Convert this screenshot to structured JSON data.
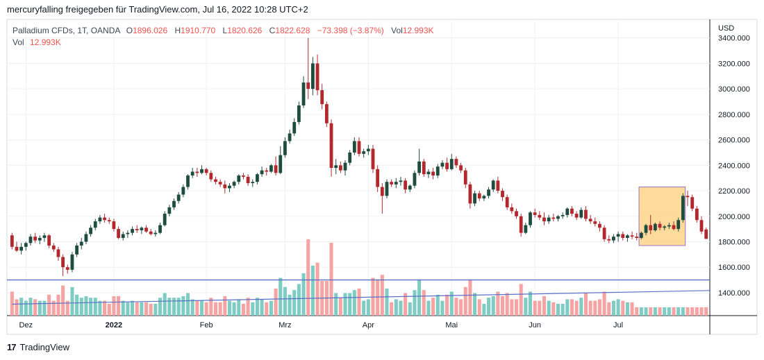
{
  "header": {
    "snapshot_text": "mercuryfalling freigegeben für TradingView.com, Jul 16, 2022 10:28 UTC+2"
  },
  "legend": {
    "symbol": "Palladium CFDs, 1T, OANDA",
    "o_label": "O",
    "o_value": "1896.026",
    "h_label": "H",
    "h_value": "1910.770",
    "l_label": "L",
    "l_value": "1820.626",
    "c_label": "C",
    "c_value": "1822.628",
    "change": "−73.398 (−3.87%)",
    "vol_label": "Vol",
    "vol_value": "12.993K",
    "vol2_label": "Vol",
    "vol2_value": "12.993K"
  },
  "footer": {
    "logo_mark": "17",
    "brand": "TradingView"
  },
  "colors": {
    "up": "#26a69a",
    "down": "#ef5350",
    "up_body": "#1e4d3f",
    "down_body": "#b2282c",
    "vol_up": "#7fccc4",
    "vol_down": "#f5a3a3",
    "hline": "#5b6fc7",
    "highlight": "#fcd58a"
  },
  "chart_data": {
    "type": "candlestick",
    "currency": "USD",
    "ylim": [
      1220,
      3480
    ],
    "y_ticks": [
      "3400.000",
      "3200.000",
      "3000.000",
      "2800.000",
      "2600.000",
      "2400.000",
      "2200.000",
      "2000.000",
      "1800.000",
      "1600.000",
      "1400.000"
    ],
    "y_tick_values": [
      3400,
      3200,
      3000,
      2800,
      2600,
      2400,
      2200,
      2000,
      1800,
      1600,
      1400
    ],
    "x_ticks": [
      "Dez",
      "2022",
      "Feb",
      "Mrz",
      "Apr",
      "Mai",
      "Jun",
      "Jul"
    ],
    "x_tick_index": [
      3,
      22,
      42,
      59,
      77,
      95,
      113,
      131
    ],
    "horizontal_line": 1500,
    "trend_line": [
      [
        0,
        1310
      ],
      [
        146,
        1417
      ]
    ],
    "highlight_box": {
      "from_index": 136,
      "to_index": 145,
      "low": 1770,
      "high": 2230
    },
    "ohlc": [
      [
        1850,
        1870,
        1740,
        1760
      ],
      [
        1760,
        1800,
        1720,
        1730
      ],
      [
        1730,
        1790,
        1700,
        1760
      ],
      [
        1760,
        1800,
        1730,
        1790
      ],
      [
        1790,
        1860,
        1770,
        1840
      ],
      [
        1840,
        1870,
        1790,
        1810
      ],
      [
        1810,
        1850,
        1780,
        1830
      ],
      [
        1830,
        1870,
        1800,
        1850
      ],
      [
        1850,
        1860,
        1750,
        1770
      ],
      [
        1770,
        1790,
        1720,
        1740
      ],
      [
        1740,
        1760,
        1650,
        1680
      ],
      [
        1680,
        1700,
        1530,
        1600
      ],
      [
        1600,
        1620,
        1550,
        1580
      ],
      [
        1580,
        1720,
        1560,
        1700
      ],
      [
        1700,
        1790,
        1680,
        1770
      ],
      [
        1770,
        1830,
        1740,
        1800
      ],
      [
        1800,
        1880,
        1780,
        1860
      ],
      [
        1860,
        1930,
        1840,
        1910
      ],
      [
        1910,
        1980,
        1890,
        1960
      ],
      [
        1960,
        2010,
        1940,
        1990
      ],
      [
        1990,
        2020,
        1950,
        1970
      ],
      [
        1970,
        1990,
        1940,
        1960
      ],
      [
        1960,
        1980,
        1880,
        1900
      ],
      [
        1900,
        1920,
        1820,
        1830
      ],
      [
        1830,
        1880,
        1810,
        1860
      ],
      [
        1860,
        1890,
        1830,
        1870
      ],
      [
        1870,
        1920,
        1850,
        1900
      ],
      [
        1900,
        1930,
        1870,
        1890
      ],
      [
        1890,
        1920,
        1860,
        1910
      ],
      [
        1910,
        1930,
        1870,
        1880
      ],
      [
        1880,
        1900,
        1850,
        1860
      ],
      [
        1860,
        1890,
        1840,
        1870
      ],
      [
        1870,
        1950,
        1860,
        1930
      ],
      [
        1930,
        2040,
        1920,
        2020
      ],
      [
        2020,
        2090,
        2000,
        2070
      ],
      [
        2070,
        2140,
        2050,
        2120
      ],
      [
        2120,
        2190,
        2100,
        2170
      ],
      [
        2170,
        2250,
        2150,
        2230
      ],
      [
        2230,
        2330,
        2210,
        2320
      ],
      [
        2320,
        2380,
        2300,
        2350
      ],
      [
        2350,
        2380,
        2310,
        2340
      ],
      [
        2340,
        2400,
        2330,
        2370
      ],
      [
        2370,
        2380,
        2320,
        2340
      ],
      [
        2340,
        2360,
        2270,
        2290
      ],
      [
        2290,
        2310,
        2250,
        2270
      ],
      [
        2270,
        2290,
        2230,
        2250
      ],
      [
        2250,
        2280,
        2180,
        2220
      ],
      [
        2220,
        2260,
        2190,
        2240
      ],
      [
        2240,
        2280,
        2220,
        2270
      ],
      [
        2270,
        2330,
        2250,
        2320
      ],
      [
        2320,
        2340,
        2290,
        2310
      ],
      [
        2310,
        2330,
        2240,
        2260
      ],
      [
        2260,
        2290,
        2230,
        2270
      ],
      [
        2270,
        2340,
        2250,
        2330
      ],
      [
        2330,
        2390,
        2310,
        2360
      ],
      [
        2360,
        2380,
        2320,
        2350
      ],
      [
        2350,
        2410,
        2340,
        2400
      ],
      [
        2400,
        2470,
        2320,
        2340
      ],
      [
        2340,
        2550,
        2330,
        2480
      ],
      [
        2480,
        2620,
        2460,
        2590
      ],
      [
        2590,
        2680,
        2570,
        2650
      ],
      [
        2650,
        2770,
        2630,
        2740
      ],
      [
        2740,
        2900,
        2720,
        2870
      ],
      [
        2870,
        3100,
        2850,
        3050
      ],
      [
        3050,
        3400,
        2920,
        3000
      ],
      [
        3000,
        3250,
        2950,
        3200
      ],
      [
        3200,
        3270,
        2950,
        2990
      ],
      [
        2990,
        3040,
        2840,
        2880
      ],
      [
        2880,
        2900,
        2700,
        2730
      ],
      [
        2730,
        2760,
        2310,
        2380
      ],
      [
        2380,
        2450,
        2330,
        2400
      ],
      [
        2400,
        2430,
        2340,
        2360
      ],
      [
        2360,
        2440,
        2320,
        2420
      ],
      [
        2420,
        2520,
        2400,
        2500
      ],
      [
        2500,
        2620,
        2480,
        2590
      ],
      [
        2590,
        2620,
        2470,
        2490
      ],
      [
        2490,
        2530,
        2460,
        2510
      ],
      [
        2510,
        2560,
        2480,
        2530
      ],
      [
        2530,
        2560,
        2340,
        2370
      ],
      [
        2370,
        2400,
        2190,
        2230
      ],
      [
        2230,
        2260,
        2020,
        2160
      ],
      [
        2160,
        2290,
        2140,
        2270
      ],
      [
        2270,
        2290,
        2230,
        2250
      ],
      [
        2250,
        2300,
        2220,
        2270
      ],
      [
        2270,
        2310,
        2240,
        2280
      ],
      [
        2280,
        2300,
        2180,
        2210
      ],
      [
        2210,
        2250,
        2190,
        2240
      ],
      [
        2240,
        2360,
        2220,
        2340
      ],
      [
        2340,
        2530,
        2320,
        2430
      ],
      [
        2430,
        2450,
        2310,
        2330
      ],
      [
        2330,
        2370,
        2300,
        2350
      ],
      [
        2350,
        2380,
        2290,
        2320
      ],
      [
        2320,
        2410,
        2300,
        2390
      ],
      [
        2390,
        2440,
        2370,
        2420
      ],
      [
        2420,
        2460,
        2350,
        2370
      ],
      [
        2370,
        2490,
        2360,
        2450
      ],
      [
        2450,
        2470,
        2380,
        2400
      ],
      [
        2400,
        2420,
        2340,
        2360
      ],
      [
        2360,
        2380,
        2220,
        2250
      ],
      [
        2250,
        2270,
        2060,
        2100
      ],
      [
        2100,
        2200,
        2080,
        2180
      ],
      [
        2180,
        2200,
        2120,
        2140
      ],
      [
        2140,
        2170,
        2120,
        2160
      ],
      [
        2160,
        2230,
        2140,
        2210
      ],
      [
        2210,
        2290,
        2190,
        2280
      ],
      [
        2280,
        2310,
        2180,
        2200
      ],
      [
        2200,
        2220,
        2120,
        2150
      ],
      [
        2150,
        2170,
        2050,
        2070
      ],
      [
        2070,
        2100,
        2020,
        2040
      ],
      [
        2040,
        2060,
        1980,
        2000
      ],
      [
        2000,
        2020,
        1840,
        1870
      ],
      [
        1870,
        1950,
        1860,
        1930
      ],
      [
        1930,
        2040,
        1910,
        2030
      ],
      [
        2030,
        2060,
        1990,
        2010
      ],
      [
        2010,
        2040,
        1970,
        1990
      ],
      [
        1990,
        2030,
        1930,
        1960
      ],
      [
        1960,
        2010,
        1940,
        1990
      ],
      [
        1990,
        2020,
        1960,
        1980
      ],
      [
        1980,
        2010,
        1960,
        2000
      ],
      [
        2000,
        2030,
        1980,
        2010
      ],
      [
        2010,
        2070,
        1990,
        2060
      ],
      [
        2060,
        2080,
        2000,
        2020
      ],
      [
        2020,
        2040,
        1970,
        1990
      ],
      [
        1990,
        2070,
        1980,
        2050
      ],
      [
        2050,
        2080,
        1960,
        1980
      ],
      [
        1980,
        2010,
        1940,
        1960
      ],
      [
        1960,
        1990,
        1920,
        1940
      ],
      [
        1940,
        1960,
        1880,
        1910
      ],
      [
        1910,
        1930,
        1800,
        1820
      ],
      [
        1820,
        1850,
        1790,
        1810
      ],
      [
        1810,
        1860,
        1790,
        1840
      ],
      [
        1840,
        1880,
        1800,
        1860
      ],
      [
        1860,
        1880,
        1810,
        1830
      ],
      [
        1830,
        1860,
        1800,
        1850
      ],
      [
        1850,
        1880,
        1820,
        1840
      ],
      [
        1840,
        1870,
        1810,
        1830
      ],
      [
        1830,
        1880,
        1820,
        1870
      ],
      [
        1870,
        1940,
        1850,
        1930
      ],
      [
        1930,
        2010,
        1860,
        1890
      ],
      [
        1890,
        1950,
        1880,
        1940
      ],
      [
        1940,
        1960,
        1890,
        1910
      ],
      [
        1910,
        1930,
        1890,
        1920
      ],
      [
        1920,
        1950,
        1900,
        1930
      ],
      [
        1930,
        1960,
        1890,
        1900
      ],
      [
        1900,
        1990,
        1880,
        1970
      ],
      [
        1970,
        2180,
        1950,
        2160
      ],
      [
        2160,
        2200,
        2080,
        2150
      ],
      [
        2150,
        2170,
        2040,
        2060
      ],
      [
        2060,
        2080,
        1950,
        1970
      ],
      [
        1970,
        2000,
        1860,
        1880
      ],
      [
        1896.026,
        1910.77,
        1820.626,
        1822.628
      ]
    ]
  }
}
